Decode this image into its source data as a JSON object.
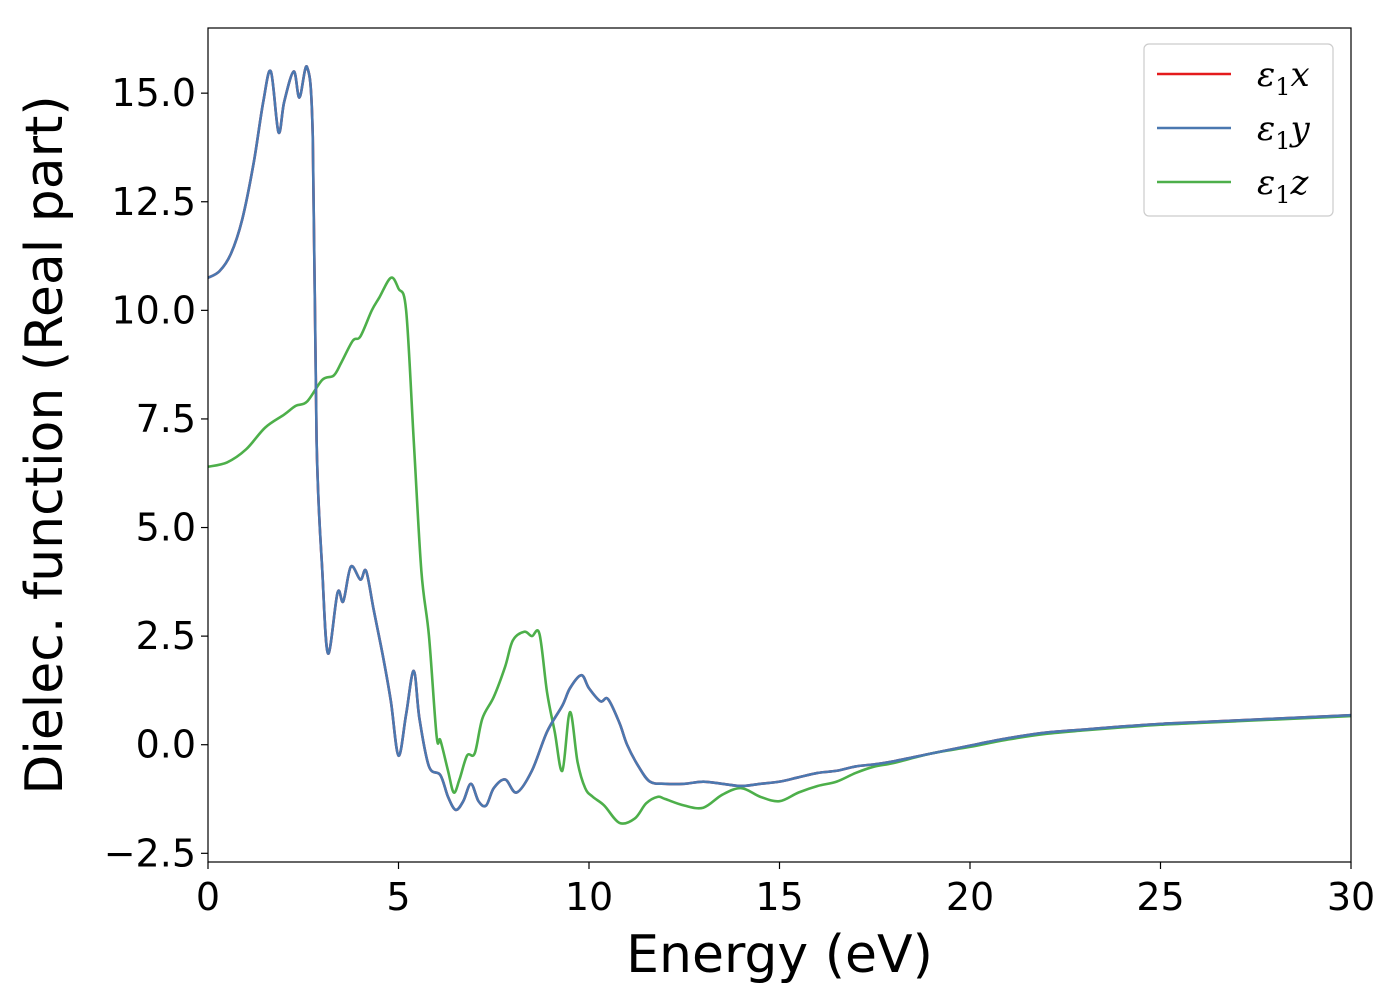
{
  "chart_data": {
    "type": "line",
    "title": "",
    "xlabel": "Energy (eV)",
    "ylabel": "Dielec. function (Real part)",
    "xlim": [
      0,
      30
    ],
    "ylim": [
      -2.7,
      16.5
    ],
    "xticks": [
      0,
      5,
      10,
      15,
      20,
      25,
      30
    ],
    "xtick_labels": [
      "0",
      "5",
      "10",
      "15",
      "20",
      "25",
      "30"
    ],
    "yticks": [
      -2.5,
      0.0,
      2.5,
      5.0,
      7.5,
      10.0,
      12.5,
      15.0
    ],
    "ytick_labels": [
      "−2.5",
      "0.0",
      "2.5",
      "5.0",
      "7.5",
      "10.0",
      "12.5",
      "15.0"
    ],
    "grid": false,
    "legend_position": "top-right",
    "series": [
      {
        "name": "ε1x",
        "legend_base": "ε",
        "legend_sub": "1",
        "legend_suffix": "x",
        "color": "#e41a1c",
        "x": [
          0,
          0.3,
          0.6,
          0.9,
          1.2,
          1.45,
          1.65,
          1.85,
          2.0,
          2.25,
          2.4,
          2.6,
          2.75,
          2.85,
          3.0,
          3.15,
          3.4,
          3.55,
          3.75,
          4.0,
          4.15,
          4.35,
          4.6,
          4.8,
          5.0,
          5.2,
          5.4,
          5.55,
          5.8,
          6.1,
          6.3,
          6.5,
          6.7,
          6.9,
          7.1,
          7.3,
          7.5,
          7.8,
          8.1,
          8.5,
          8.9,
          9.3,
          9.5,
          9.8,
          10.0,
          10.3,
          10.5,
          10.8,
          11.0,
          11.3,
          11.6,
          12.0,
          12.5,
          13.0,
          13.5,
          14.0,
          14.5,
          15.0,
          15.5,
          16.0,
          16.5,
          17.0,
          17.5,
          18.0,
          19.0,
          20.0,
          21.0,
          22.0,
          23.0,
          24.0,
          25.0,
          26.0,
          27.0,
          28.0,
          29.0,
          30.0
        ],
        "y": [
          10.75,
          10.9,
          11.3,
          12.1,
          13.4,
          14.8,
          15.5,
          14.1,
          14.8,
          15.5,
          14.9,
          15.6,
          14.0,
          7.0,
          4.0,
          2.1,
          3.5,
          3.3,
          4.1,
          3.8,
          4.0,
          3.1,
          2.0,
          1.0,
          -0.25,
          0.7,
          1.7,
          0.6,
          -0.5,
          -0.7,
          -1.2,
          -1.5,
          -1.3,
          -0.9,
          -1.3,
          -1.4,
          -1.0,
          -0.8,
          -1.1,
          -0.6,
          0.3,
          0.9,
          1.3,
          1.6,
          1.3,
          1.0,
          1.05,
          0.5,
          0.0,
          -0.5,
          -0.85,
          -0.9,
          -0.9,
          -0.85,
          -0.9,
          -0.95,
          -0.9,
          -0.85,
          -0.75,
          -0.65,
          -0.6,
          -0.5,
          -0.45,
          -0.38,
          -0.2,
          -0.02,
          0.15,
          0.28,
          0.35,
          0.42,
          0.48,
          0.52,
          0.56,
          0.6,
          0.64,
          0.68
        ]
      },
      {
        "name": "ε1y",
        "legend_base": "ε",
        "legend_sub": "1",
        "legend_suffix": "y",
        "color": "#4a78b0",
        "x": [
          0,
          0.3,
          0.6,
          0.9,
          1.2,
          1.45,
          1.65,
          1.85,
          2.0,
          2.25,
          2.4,
          2.6,
          2.75,
          2.85,
          3.0,
          3.15,
          3.4,
          3.55,
          3.75,
          4.0,
          4.15,
          4.35,
          4.6,
          4.8,
          5.0,
          5.2,
          5.4,
          5.55,
          5.8,
          6.1,
          6.3,
          6.5,
          6.7,
          6.9,
          7.1,
          7.3,
          7.5,
          7.8,
          8.1,
          8.5,
          8.9,
          9.3,
          9.5,
          9.8,
          10.0,
          10.3,
          10.5,
          10.8,
          11.0,
          11.3,
          11.6,
          12.0,
          12.5,
          13.0,
          13.5,
          14.0,
          14.5,
          15.0,
          15.5,
          16.0,
          16.5,
          17.0,
          17.5,
          18.0,
          19.0,
          20.0,
          21.0,
          22.0,
          23.0,
          24.0,
          25.0,
          26.0,
          27.0,
          28.0,
          29.0,
          30.0
        ],
        "y": [
          10.75,
          10.9,
          11.3,
          12.1,
          13.4,
          14.8,
          15.5,
          14.1,
          14.8,
          15.5,
          14.9,
          15.6,
          14.0,
          7.0,
          4.0,
          2.1,
          3.5,
          3.3,
          4.1,
          3.8,
          4.0,
          3.1,
          2.0,
          1.0,
          -0.25,
          0.7,
          1.7,
          0.6,
          -0.5,
          -0.7,
          -1.2,
          -1.5,
          -1.3,
          -0.9,
          -1.3,
          -1.4,
          -1.0,
          -0.8,
          -1.1,
          -0.6,
          0.3,
          0.9,
          1.3,
          1.6,
          1.3,
          1.0,
          1.05,
          0.5,
          0.0,
          -0.5,
          -0.85,
          -0.9,
          -0.9,
          -0.85,
          -0.9,
          -0.95,
          -0.9,
          -0.85,
          -0.75,
          -0.65,
          -0.6,
          -0.5,
          -0.45,
          -0.38,
          -0.2,
          -0.02,
          0.15,
          0.28,
          0.35,
          0.42,
          0.48,
          0.52,
          0.56,
          0.6,
          0.64,
          0.68
        ]
      },
      {
        "name": "ε1z",
        "legend_base": "ε",
        "legend_sub": "1",
        "legend_suffix": "z",
        "color": "#4daf4a",
        "x": [
          0,
          0.5,
          1.0,
          1.5,
          2.0,
          2.3,
          2.6,
          3.0,
          3.3,
          3.5,
          3.8,
          4.0,
          4.3,
          4.5,
          4.8,
          5.0,
          5.2,
          5.4,
          5.6,
          5.8,
          6.0,
          6.1,
          6.3,
          6.45,
          6.6,
          6.8,
          7.0,
          7.2,
          7.5,
          7.8,
          8.0,
          8.3,
          8.5,
          8.7,
          8.9,
          9.1,
          9.3,
          9.5,
          9.7,
          9.9,
          10.1,
          10.4,
          10.8,
          11.2,
          11.5,
          11.8,
          12.0,
          12.5,
          13.0,
          13.5,
          14.0,
          14.5,
          15.0,
          15.5,
          16.0,
          16.5,
          17.0,
          17.5,
          18.0,
          19.0,
          20.0,
          21.0,
          22.0,
          23.0,
          24.0,
          25.0,
          26.0,
          27.0,
          28.0,
          29.0,
          30.0
        ],
        "y": [
          6.4,
          6.5,
          6.8,
          7.3,
          7.6,
          7.8,
          7.9,
          8.4,
          8.5,
          8.8,
          9.3,
          9.4,
          10.0,
          10.3,
          10.75,
          10.5,
          10.0,
          7.0,
          4.0,
          2.5,
          0.2,
          0.1,
          -0.6,
          -1.1,
          -0.8,
          -0.25,
          -0.2,
          0.6,
          1.1,
          1.8,
          2.4,
          2.6,
          2.5,
          2.55,
          1.2,
          0.3,
          -0.6,
          0.75,
          -0.4,
          -1.0,
          -1.2,
          -1.4,
          -1.8,
          -1.7,
          -1.35,
          -1.2,
          -1.25,
          -1.4,
          -1.45,
          -1.15,
          -1.0,
          -1.2,
          -1.3,
          -1.1,
          -0.95,
          -0.85,
          -0.65,
          -0.5,
          -0.42,
          -0.2,
          -0.05,
          0.12,
          0.25,
          0.33,
          0.4,
          0.46,
          0.5,
          0.54,
          0.58,
          0.62,
          0.66
        ]
      }
    ]
  }
}
